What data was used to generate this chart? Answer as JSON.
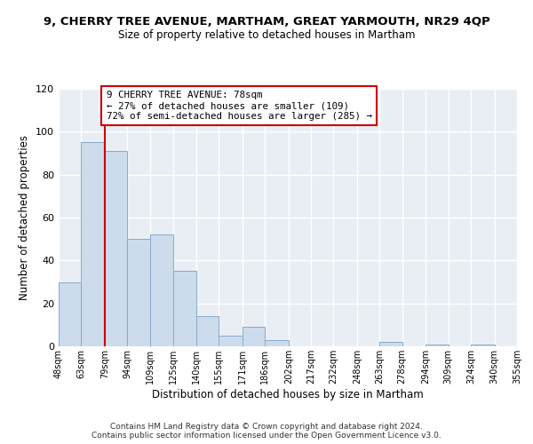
{
  "title": "9, CHERRY TREE AVENUE, MARTHAM, GREAT YARMOUTH, NR29 4QP",
  "subtitle": "Size of property relative to detached houses in Martham",
  "xlabel": "Distribution of detached houses by size in Martham",
  "ylabel": "Number of detached properties",
  "bar_color": "#ccdcec",
  "bar_edge_color": "#88aac8",
  "reference_line_color": "#cc0000",
  "annotation_text": "9 CHERRY TREE AVENUE: 78sqm\n← 27% of detached houses are smaller (109)\n72% of semi-detached houses are larger (285) →",
  "annotation_box_facecolor": "#ffffff",
  "annotation_box_edgecolor": "#cc0000",
  "bins": [
    48,
    63,
    79,
    94,
    109,
    125,
    140,
    155,
    171,
    186,
    202,
    217,
    232,
    248,
    263,
    278,
    294,
    309,
    324,
    340,
    355
  ],
  "counts": [
    30,
    95,
    91,
    50,
    52,
    35,
    14,
    5,
    9,
    3,
    0,
    0,
    0,
    0,
    2,
    0,
    1,
    0,
    1,
    0
  ],
  "tick_labels": [
    "48sqm",
    "63sqm",
    "79sqm",
    "94sqm",
    "109sqm",
    "125sqm",
    "140sqm",
    "155sqm",
    "171sqm",
    "186sqm",
    "202sqm",
    "217sqm",
    "232sqm",
    "248sqm",
    "263sqm",
    "278sqm",
    "294sqm",
    "309sqm",
    "324sqm",
    "340sqm",
    "355sqm"
  ],
  "ylim": [
    0,
    120
  ],
  "yticks": [
    0,
    20,
    40,
    60,
    80,
    100,
    120
  ],
  "footer_line1": "Contains HM Land Registry data © Crown copyright and database right 2024.",
  "footer_line2": "Contains public sector information licensed under the Open Government Licence v3.0.",
  "fig_bg_color": "#ffffff",
  "plot_bg_color": "#e8eef4"
}
